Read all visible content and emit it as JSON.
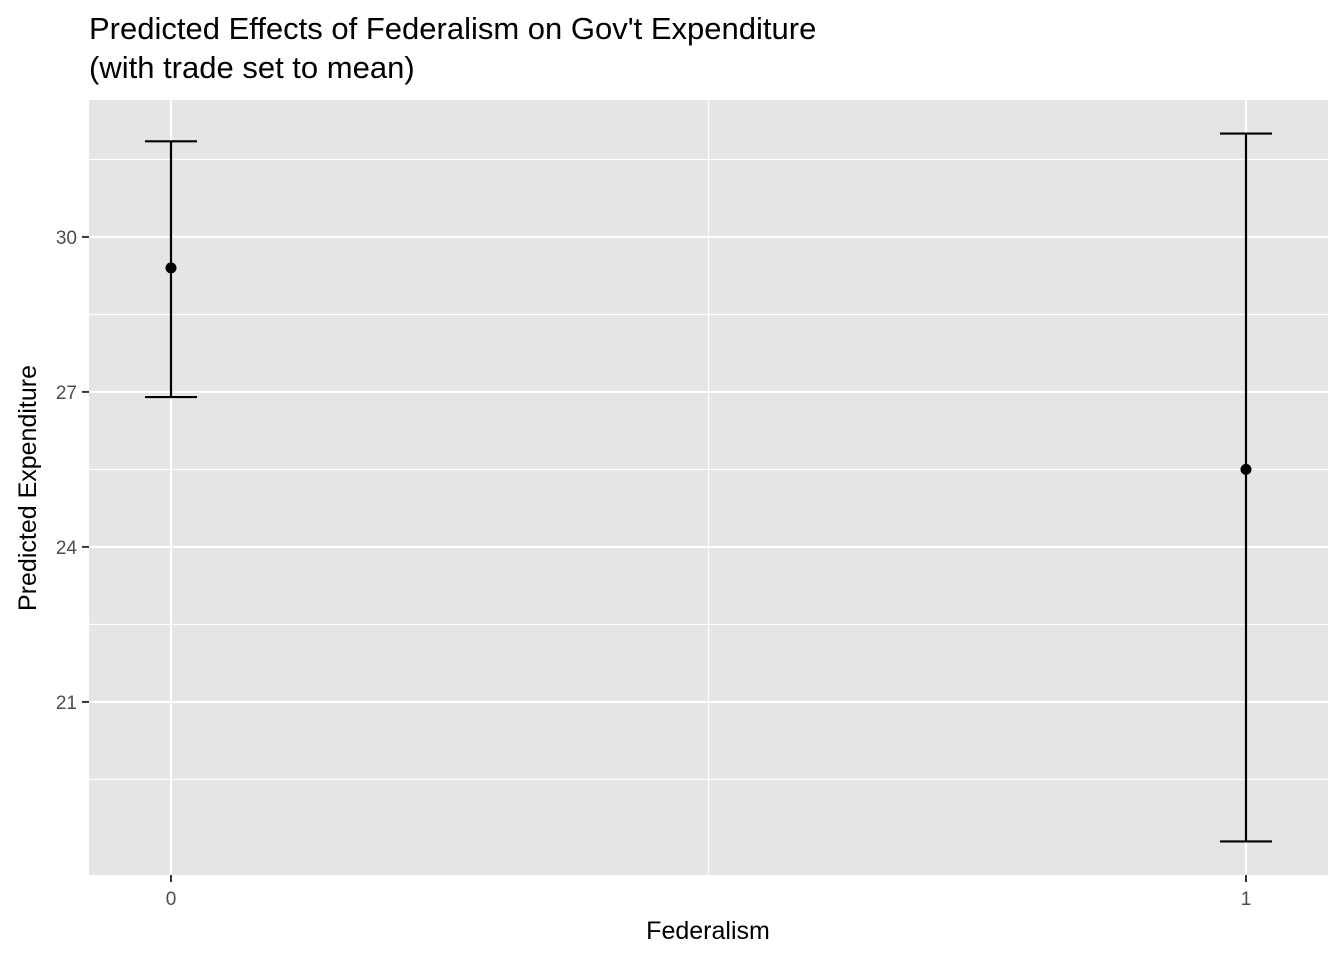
{
  "chart_data": {
    "type": "errorbar",
    "title": "Predicted Effects of Federalism on Gov't Expenditure",
    "subtitle": "(with trade set to mean)",
    "xlabel": "Federalism",
    "ylabel": "Predicted Expenditure",
    "categories": [
      "0",
      "1"
    ],
    "points": [
      {
        "x": "0",
        "y": 29.4,
        "lower": 26.9,
        "upper": 31.85
      },
      {
        "x": "1",
        "y": 25.5,
        "lower": 18.3,
        "upper": 32.0
      }
    ],
    "yticks": [
      21,
      24,
      27,
      30
    ],
    "ylim": [
      17.65,
      32.65
    ],
    "grid": true,
    "colors": {
      "panel_background": "#e5e5e5",
      "grid": "#ffffff",
      "mark": "#000000",
      "tick_text": "#4d4d4d",
      "axis_tick": "#333333"
    }
  }
}
